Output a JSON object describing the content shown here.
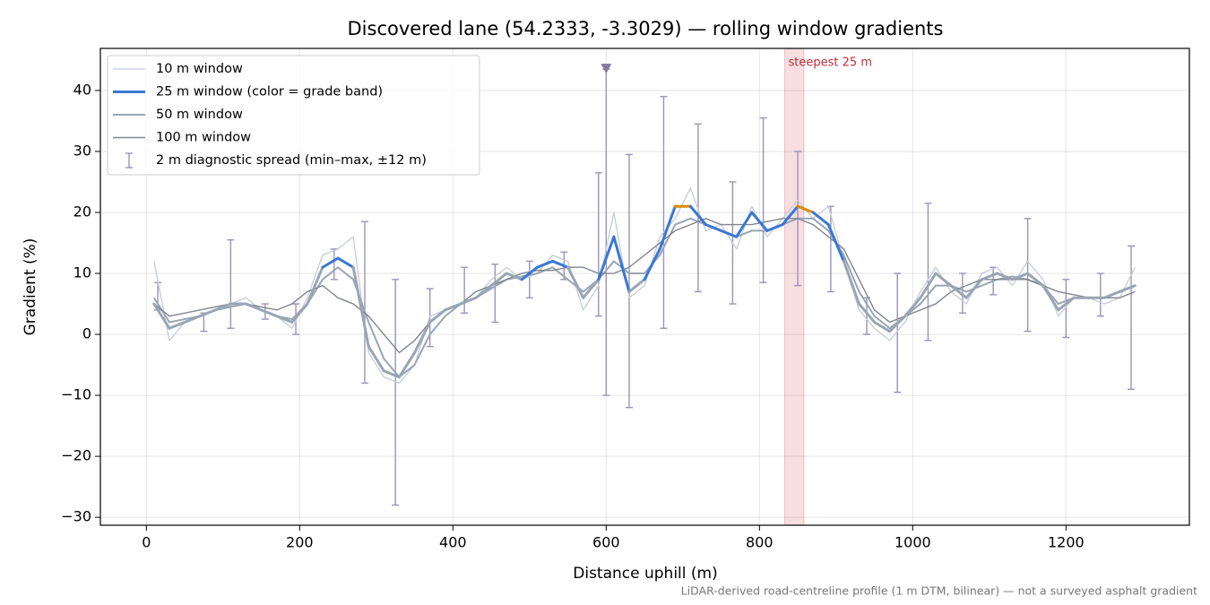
{
  "chart_data": {
    "type": "line",
    "title": "Discovered lane (54.2333, -3.3029) — rolling window gradients",
    "x_label": "Distance uphill (m)",
    "y_label": "Gradient (%)",
    "footnote": "LiDAR-derived road-centreline profile (1 m DTM, bilinear) — not a surveyed asphalt gradient",
    "xlim": [
      -60,
      1361
    ],
    "ylim": [
      -31.3,
      46.9
    ],
    "xticks": [
      0,
      200,
      400,
      600,
      800,
      1000,
      1200
    ],
    "yticks": [
      {
        "value": -30,
        "label": "−30"
      },
      {
        "value": -20,
        "label": "−20"
      },
      {
        "value": -10,
        "label": "−10"
      },
      0,
      10,
      20,
      30,
      40
    ],
    "grid": true,
    "legend": "upper left",
    "x": [
      10,
      30,
      50,
      70,
      90,
      110,
      130,
      150,
      170,
      190,
      210,
      230,
      250,
      270,
      290,
      310,
      330,
      350,
      370,
      390,
      410,
      430,
      450,
      470,
      490,
      510,
      530,
      550,
      570,
      590,
      610,
      630,
      650,
      670,
      690,
      710,
      730,
      750,
      770,
      790,
      810,
      830,
      850,
      870,
      890,
      910,
      930,
      950,
      970,
      990,
      1010,
      1030,
      1050,
      1070,
      1090,
      1110,
      1130,
      1150,
      1170,
      1190,
      1210,
      1230,
      1250,
      1270,
      1290
    ],
    "series": [
      {
        "name": "10 m window",
        "color": "#c5ccd6",
        "width": 1.3,
        "values": [
          12,
          -1,
          2,
          3,
          4,
          5,
          6,
          4,
          3,
          1,
          6,
          13,
          14,
          16,
          -3,
          -7,
          -8,
          -5,
          3,
          4,
          5,
          6,
          9,
          11,
          9,
          10,
          13,
          12,
          4,
          8,
          20,
          6,
          8,
          16,
          19,
          24,
          17,
          18,
          14,
          21,
          16,
          19,
          22,
          19,
          21,
          12,
          4,
          1,
          -1,
          2,
          7,
          11,
          7,
          5,
          10,
          11,
          8,
          12,
          9,
          3,
          6,
          6,
          5,
          6,
          11
        ]
      },
      {
        "name": "25 m window (color = grade band)",
        "color": "#3a78d4",
        "width": 3,
        "band_thresholds": [
          10,
          20
        ],
        "band_colors": [
          "#9aa5b4",
          "#3a78d4",
          "#e08a00"
        ],
        "values": [
          5,
          1,
          2,
          3,
          4,
          5,
          5,
          4,
          3,
          2,
          5,
          11,
          12.5,
          11,
          -2,
          -6,
          -7,
          -3,
          2,
          4,
          5,
          6,
          8,
          10,
          9,
          11,
          12,
          11,
          6,
          9,
          16,
          7,
          9,
          14,
          21,
          21,
          18,
          17,
          16,
          20,
          17,
          18,
          21,
          20,
          18,
          12,
          5,
          2,
          0.5,
          3,
          6,
          10,
          8,
          6,
          9,
          10,
          9,
          10,
          8,
          4,
          6,
          6,
          6,
          7,
          8
        ]
      },
      {
        "name": "50 m window",
        "color": "#9aa5b4",
        "width": 2,
        "values": [
          6,
          2,
          2.5,
          3,
          4,
          4.5,
          5,
          4,
          3,
          2.5,
          5,
          9,
          11,
          9,
          2,
          -4,
          -7,
          -5,
          0,
          3,
          5,
          6,
          7.5,
          9,
          9.5,
          10,
          11,
          9,
          7,
          9,
          12,
          10,
          10,
          13,
          18,
          19,
          18,
          17,
          16,
          17,
          17,
          18,
          19,
          19,
          17,
          13,
          7,
          3,
          1,
          3,
          5,
          8,
          8,
          7,
          8,
          9,
          9.5,
          9,
          8,
          5,
          6,
          6,
          6,
          7,
          8
        ]
      },
      {
        "name": "100 m window",
        "color": "#80868f",
        "width": 1.4,
        "values": [
          5,
          3,
          3.5,
          4,
          4.5,
          5,
          5,
          4.5,
          4,
          5,
          7,
          8,
          6,
          5,
          3,
          0,
          -3,
          -1,
          2,
          4,
          5,
          7,
          8,
          9,
          10,
          10.5,
          10.5,
          11,
          11,
          10,
          10,
          11,
          13,
          15,
          17,
          18,
          19,
          18,
          18,
          18,
          18.5,
          19,
          19,
          18,
          16,
          14,
          9,
          4,
          2,
          3,
          4,
          5,
          7,
          8,
          9,
          9,
          9,
          9,
          8,
          7,
          6.5,
          6,
          6,
          6,
          7
        ]
      }
    ],
    "spread": {
      "name": "2 m diagnostic spread (min–max, ±12 m)",
      "color": "#9a94b8",
      "x": [
        15,
        75,
        110,
        155,
        195,
        245,
        285,
        325,
        370,
        415,
        455,
        500,
        545,
        590,
        600,
        630,
        675,
        720,
        765,
        805,
        850,
        893,
        940,
        980,
        1020,
        1065,
        1105,
        1150,
        1200,
        1245,
        1285
      ],
      "low": [
        4,
        0.5,
        1,
        2.5,
        0,
        9,
        -8,
        -28,
        -2,
        3.5,
        2,
        6,
        9,
        3,
        -10,
        -12,
        1,
        7,
        5,
        8.5,
        8,
        7,
        0,
        -9.5,
        -1,
        3.5,
        6.5,
        0.5,
        -0.5,
        3,
        -9
      ],
      "high": [
        8.5,
        3.5,
        15.5,
        5,
        5,
        14,
        18.5,
        9,
        7.5,
        11,
        11.5,
        12,
        13.5,
        26.5,
        43.5,
        29.5,
        39,
        34.5,
        25,
        35.5,
        30,
        21,
        6,
        10,
        21.5,
        10,
        11,
        19,
        9,
        10,
        14.5
      ]
    },
    "peak_marker": {
      "x": 600,
      "y": 43.5,
      "color": "#8378a0"
    },
    "highlight": {
      "x": [
        833,
        858
      ],
      "label": "steepest 25 m",
      "color": "#e8a0a8",
      "label_color": "#c0303a"
    }
  }
}
